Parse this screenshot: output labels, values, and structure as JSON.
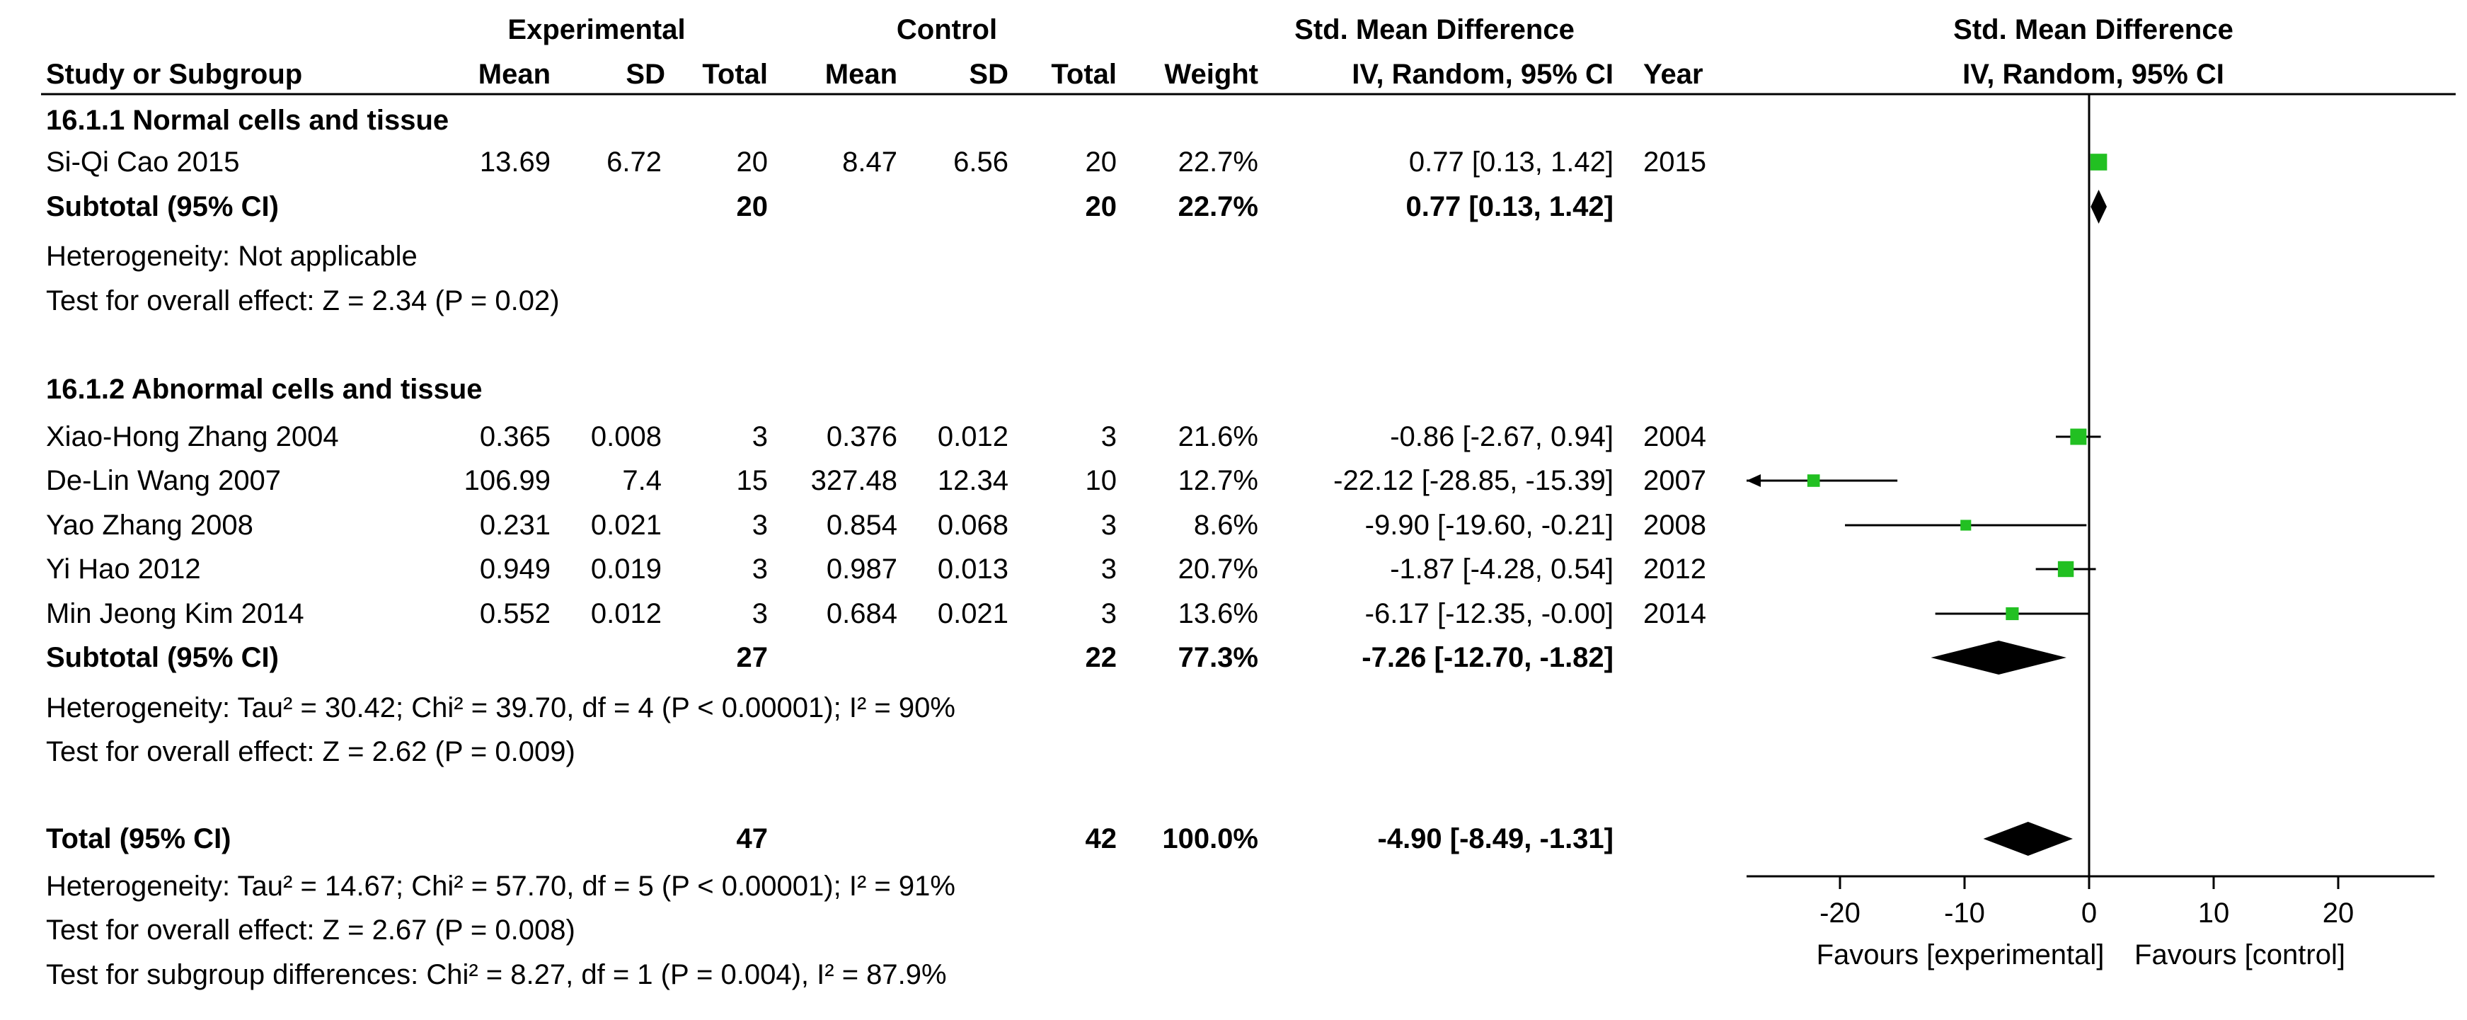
{
  "header": {
    "group_labels": {
      "experimental": "Experimental",
      "control": "Control",
      "smd": "Std. Mean Difference",
      "plot": "Std. Mean Difference"
    },
    "columns": [
      "Study or Subgroup",
      "Mean",
      "SD",
      "Total",
      "Mean",
      "SD",
      "Total",
      "Weight",
      "IV, Random, 95% CI",
      "Year"
    ],
    "plot_subtitle": "IV, Random, 95% CI"
  },
  "subgroups": [
    {
      "title": "16.1.1 Normal cells and tissue",
      "studies": [
        {
          "name": "Si-Qi Cao 2015",
          "e_mean": "13.69",
          "e_sd": "6.72",
          "e_total": "20",
          "c_mean": "8.47",
          "c_sd": "6.56",
          "c_total": "20",
          "weight": "22.7%",
          "ci_text": "0.77 [0.13, 1.42]",
          "year": "2015",
          "est": 0.77,
          "lo": 0.13,
          "hi": 1.42,
          "w": 22.7
        }
      ],
      "subtotal": {
        "label": "Subtotal (95% CI)",
        "e_total": "20",
        "c_total": "20",
        "weight": "22.7%",
        "ci_text": "0.77 [0.13, 1.42]",
        "est": 0.77,
        "lo": 0.13,
        "hi": 1.42
      },
      "heterogeneity": "Heterogeneity: Not applicable",
      "overall": "Test for overall effect: Z = 2.34 (P = 0.02)"
    },
    {
      "title": "16.1.2 Abnormal cells and tissue",
      "studies": [
        {
          "name": "Xiao-Hong Zhang 2004",
          "e_mean": "0.365",
          "e_sd": "0.008",
          "e_total": "3",
          "c_mean": "0.376",
          "c_sd": "0.012",
          "c_total": "3",
          "weight": "21.6%",
          "ci_text": "-0.86 [-2.67, 0.94]",
          "year": "2004",
          "est": -0.86,
          "lo": -2.67,
          "hi": 0.94,
          "w": 21.6
        },
        {
          "name": "De-Lin Wang 2007",
          "e_mean": "106.99",
          "e_sd": "7.4",
          "e_total": "15",
          "c_mean": "327.48",
          "c_sd": "12.34",
          "c_total": "10",
          "weight": "12.7%",
          "ci_text": "-22.12 [-28.85, -15.39]",
          "year": "2007",
          "est": -22.12,
          "lo": -28.85,
          "hi": -15.39,
          "w": 12.7
        },
        {
          "name": "Yao Zhang 2008",
          "e_mean": "0.231",
          "e_sd": "0.021",
          "e_total": "3",
          "c_mean": "0.854",
          "c_sd": "0.068",
          "c_total": "3",
          "weight": "8.6%",
          "ci_text": "-9.90 [-19.60, -0.21]",
          "year": "2008",
          "est": -9.9,
          "lo": -19.6,
          "hi": -0.21,
          "w": 8.6
        },
        {
          "name": "Yi Hao 2012",
          "e_mean": "0.949",
          "e_sd": "0.019",
          "e_total": "3",
          "c_mean": "0.987",
          "c_sd": "0.013",
          "c_total": "3",
          "weight": "20.7%",
          "ci_text": "-1.87 [-4.28, 0.54]",
          "year": "2012",
          "est": -1.87,
          "lo": -4.28,
          "hi": 0.54,
          "w": 20.7
        },
        {
          "name": "Min Jeong Kim 2014",
          "e_mean": "0.552",
          "e_sd": "0.012",
          "e_total": "3",
          "c_mean": "0.684",
          "c_sd": "0.021",
          "c_total": "3",
          "weight": "13.6%",
          "ci_text": "-6.17 [-12.35, -0.00]",
          "year": "2014",
          "est": -6.17,
          "lo": -12.35,
          "hi": -0.0,
          "w": 13.6
        }
      ],
      "subtotal": {
        "label": "Subtotal (95% CI)",
        "e_total": "27",
        "c_total": "22",
        "weight": "77.3%",
        "ci_text": "-7.26 [-12.70, -1.82]",
        "est": -7.26,
        "lo": -12.7,
        "hi": -1.82
      },
      "heterogeneity": "Heterogeneity: Tau² = 30.42; Chi² = 39.70, df = 4 (P < 0.00001); I² = 90%",
      "overall": "Test for overall effect: Z = 2.62 (P = 0.009)"
    }
  ],
  "total": {
    "label": "Total (95% CI)",
    "e_total": "47",
    "c_total": "42",
    "weight": "100.0%",
    "ci_text": "-4.90 [-8.49, -1.31]",
    "est": -4.9,
    "lo": -8.49,
    "hi": -1.31,
    "heterogeneity": "Heterogeneity: Tau² = 14.67; Chi² = 57.70, df = 5 (P < 0.00001); I² = 91%",
    "overall": "Test for overall effect: Z = 2.67 (P = 0.008)",
    "subgroup_test": "Test for subgroup differences: Chi² = 8.27, df = 1 (P = 0.004), I² = 87.9%"
  },
  "axis": {
    "ticks": [
      "-20",
      "-10",
      "0",
      "10",
      "20"
    ],
    "left_label": "Favours [experimental]",
    "right_label": "Favours [control]"
  },
  "colors": {
    "marker": "#22c022",
    "diamond": "#000000",
    "line": "#000000"
  },
  "chart_data": {
    "type": "forest",
    "title": "Std. Mean Difference",
    "subtitle": "IV, Random, 95% CI",
    "xlim": [
      -28,
      28
    ],
    "xticks": [
      -20,
      -10,
      0,
      10,
      20
    ],
    "xlabel_left": "Favours [experimental]",
    "xlabel_right": "Favours [control]",
    "studies": [
      {
        "name": "Si-Qi Cao 2015",
        "est": 0.77,
        "lo": 0.13,
        "hi": 1.42,
        "weight": 22.7
      },
      {
        "name": "Xiao-Hong Zhang 2004",
        "est": -0.86,
        "lo": -2.67,
        "hi": 0.94,
        "weight": 21.6
      },
      {
        "name": "De-Lin Wang 2007",
        "est": -22.12,
        "lo": -28.85,
        "hi": -15.39,
        "weight": 12.7
      },
      {
        "name": "Yao Zhang 2008",
        "est": -9.9,
        "lo": -19.6,
        "hi": -0.21,
        "weight": 8.6
      },
      {
        "name": "Yi Hao 2012",
        "est": -1.87,
        "lo": -4.28,
        "hi": 0.54,
        "weight": 20.7
      },
      {
        "name": "Min Jeong Kim 2014",
        "est": -6.17,
        "lo": -12.35,
        "hi": -0.0,
        "weight": 13.6
      }
    ],
    "subtotals": [
      {
        "name": "16.1.1 Normal cells and tissue",
        "est": 0.77,
        "lo": 0.13,
        "hi": 1.42
      },
      {
        "name": "16.1.2 Abnormal cells and tissue",
        "est": -7.26,
        "lo": -12.7,
        "hi": -1.82
      }
    ],
    "total": {
      "est": -4.9,
      "lo": -8.49,
      "hi": -1.31
    }
  }
}
